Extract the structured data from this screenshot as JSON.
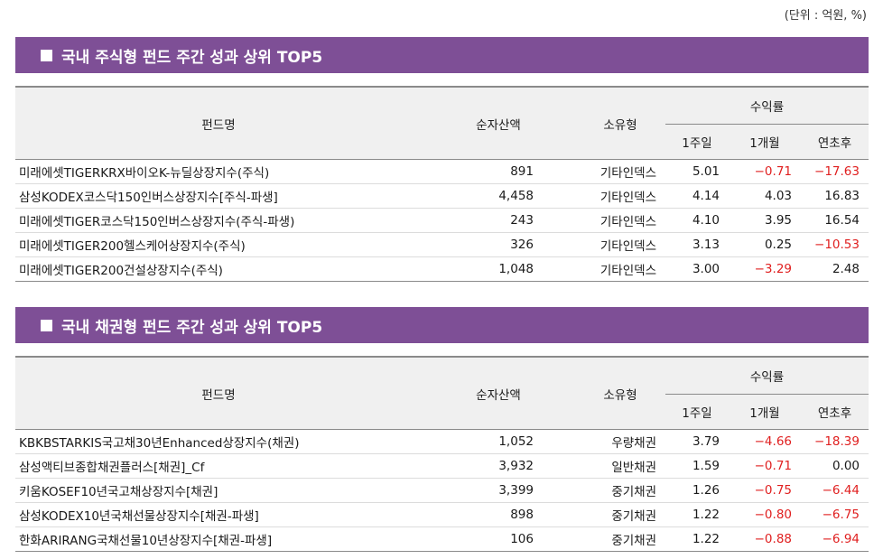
{
  "unit_note": "(단위 : 억원, %)",
  "colors": {
    "title_bar": "#7e4f96",
    "negative": "#e02020",
    "header_bg": "#f0f0f0"
  },
  "table_headers": {
    "fund_name": "펀드명",
    "aum": "순자산액",
    "type": "소유형",
    "returns": "수익률",
    "w1": "1주일",
    "m1": "1개월",
    "ytd": "연초후"
  },
  "sections": [
    {
      "title": "국내 주식형 펀드 주간 성과 상위 TOP5",
      "rows": [
        {
          "name": "미래에셋TIGERKRX바이오K-뉴딜상장지수(주식)",
          "aum": "891",
          "type": "기타인덱스",
          "w1": "5.01",
          "m1": "−0.71",
          "ytd": "−17.63"
        },
        {
          "name": "삼성KODEX코스닥150인버스상장지수[주식-파생]",
          "aum": "4,458",
          "type": "기타인덱스",
          "w1": "4.14",
          "m1": "4.03",
          "ytd": "16.83"
        },
        {
          "name": "미래에셋TIGER코스닥150인버스상장지수(주식-파생)",
          "aum": "243",
          "type": "기타인덱스",
          "w1": "4.10",
          "m1": "3.95",
          "ytd": "16.54"
        },
        {
          "name": "미래에셋TIGER200헬스케어상장지수(주식)",
          "aum": "326",
          "type": "기타인덱스",
          "w1": "3.13",
          "m1": "0.25",
          "ytd": "−10.53"
        },
        {
          "name": "미래에셋TIGER200건설상장지수(주식)",
          "aum": "1,048",
          "type": "기타인덱스",
          "w1": "3.00",
          "m1": "−3.29",
          "ytd": "2.48"
        }
      ]
    },
    {
      "title": "국내 채권형 펀드 주간 성과 상위 TOP5",
      "rows": [
        {
          "name": "KBKBSTARKIS국고채30년Enhanced상장지수(채권)",
          "aum": "1,052",
          "type": "우량채권",
          "w1": "3.79",
          "m1": "−4.66",
          "ytd": "−18.39"
        },
        {
          "name": "삼성액티브종합채권플러스[채권]_Cf",
          "aum": "3,932",
          "type": "일반채권",
          "w1": "1.59",
          "m1": "−0.71",
          "ytd": "0.00"
        },
        {
          "name": "키움KOSEF10년국고채상장지수[채권]",
          "aum": "3,399",
          "type": "중기채권",
          "w1": "1.26",
          "m1": "−0.75",
          "ytd": "−6.44"
        },
        {
          "name": "삼성KODEX10년국채선물상장지수[채권-파생]",
          "aum": "898",
          "type": "중기채권",
          "w1": "1.22",
          "m1": "−0.80",
          "ytd": "−6.75"
        },
        {
          "name": "한화ARIRANG국채선물10년상장지수[채권-파생]",
          "aum": "106",
          "type": "중기채권",
          "w1": "1.22",
          "m1": "−0.88",
          "ytd": "−6.94"
        }
      ]
    }
  ]
}
